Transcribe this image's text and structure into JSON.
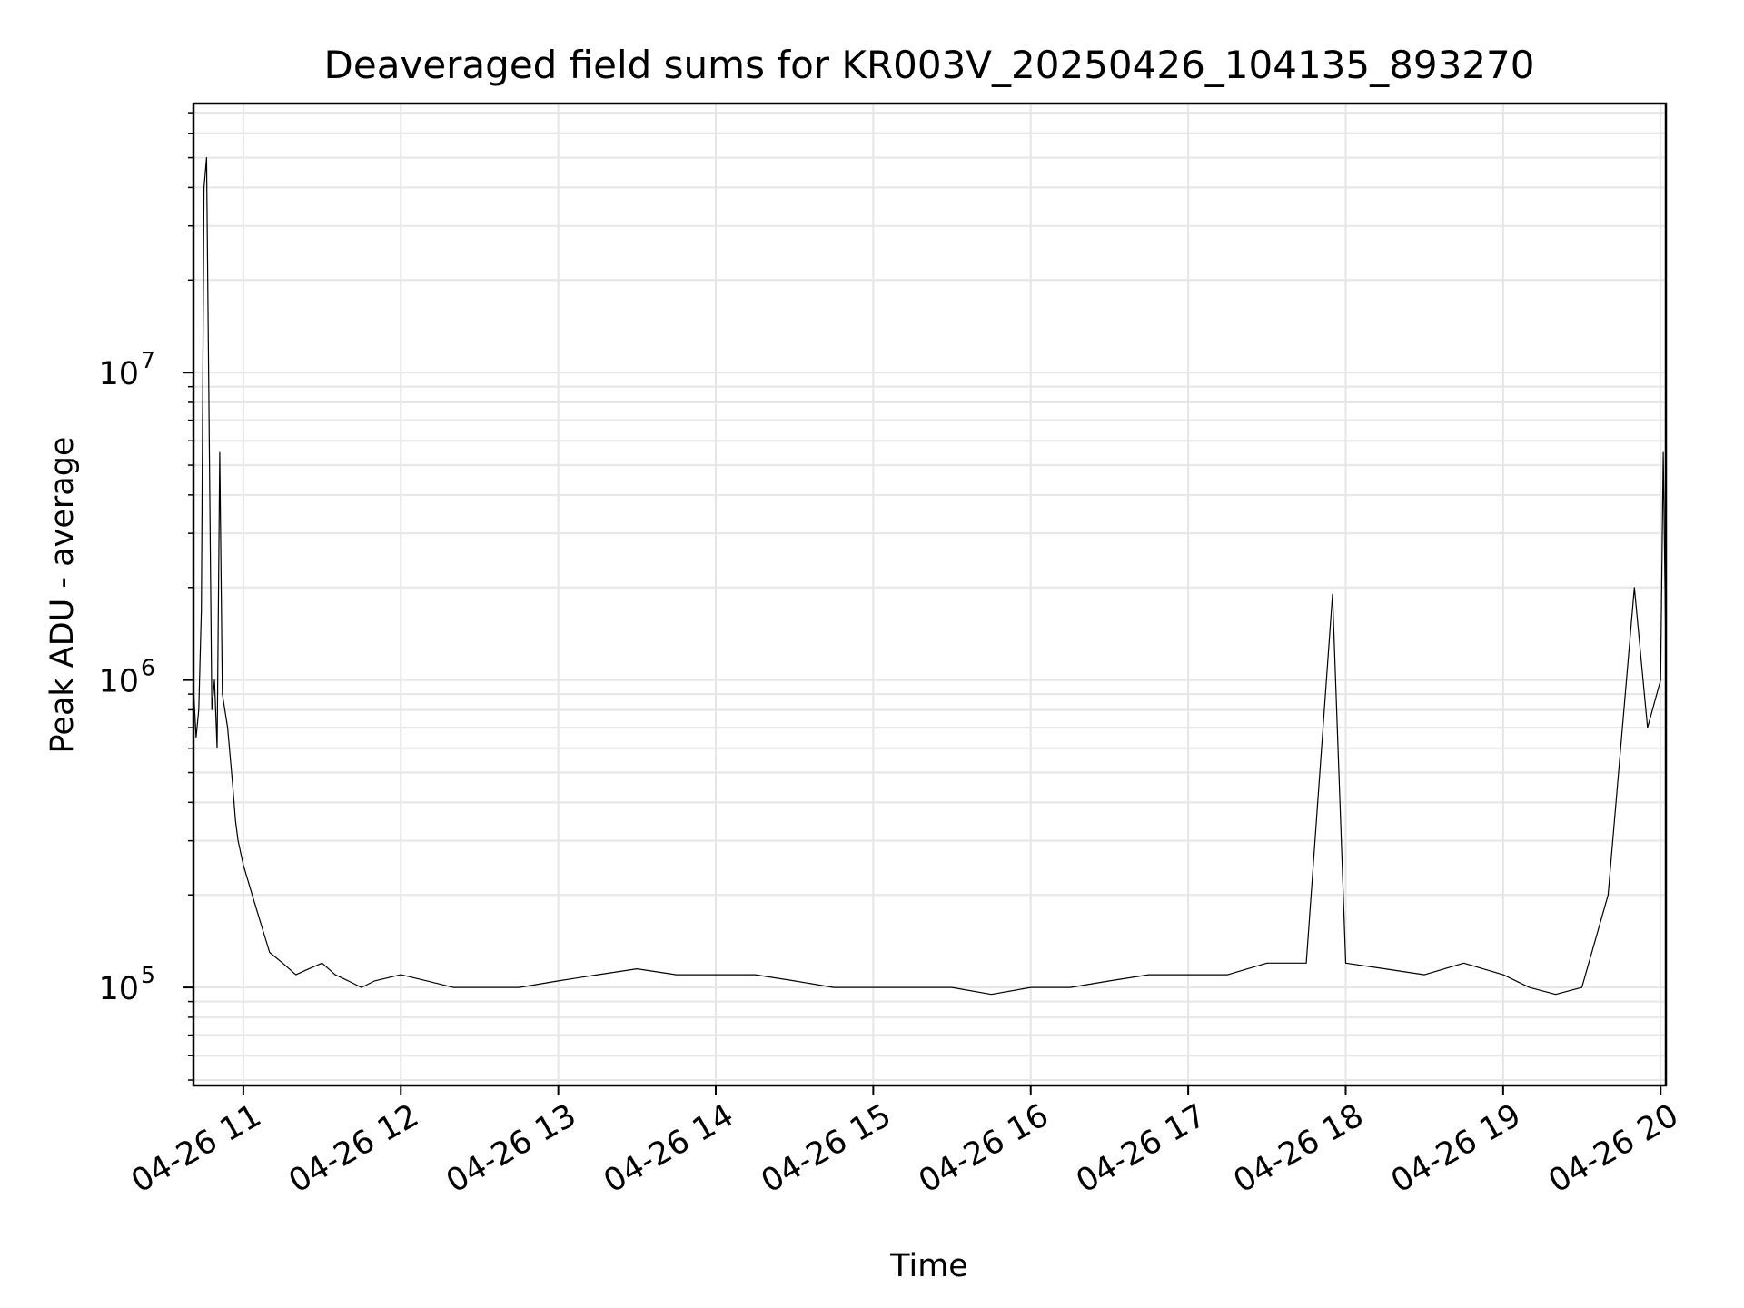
{
  "chart_data": {
    "type": "line",
    "title": "Deaveraged field sums for KR003V_20250426_104135_893270",
    "xlabel": "Time",
    "ylabel": "Peak ADU - average",
    "yscale": "log",
    "ylim": [
      48000,
      75000000
    ],
    "xlim": [
      "04-26 10:41",
      "04-26 20:02"
    ],
    "grid": true,
    "grid_color": "#e6e6e6",
    "line_color": "#000000",
    "x_ticks": [
      {
        "value": "04-26 11:00",
        "label": "04-26 11"
      },
      {
        "value": "04-26 12:00",
        "label": "04-26 12"
      },
      {
        "value": "04-26 13:00",
        "label": "04-26 13"
      },
      {
        "value": "04-26 14:00",
        "label": "04-26 14"
      },
      {
        "value": "04-26 15:00",
        "label": "04-26 15"
      },
      {
        "value": "04-26 16:00",
        "label": "04-26 16"
      },
      {
        "value": "04-26 17:00",
        "label": "04-26 17"
      },
      {
        "value": "04-26 18:00",
        "label": "04-26 18"
      },
      {
        "value": "04-26 19:00",
        "label": "04-26 19"
      },
      {
        "value": "04-26 20:00",
        "label": "04-26 20"
      }
    ],
    "y_ticks": [
      {
        "value": 100000,
        "base": "10",
        "exp": "5"
      },
      {
        "value": 1000000,
        "base": "10",
        "exp": "6"
      },
      {
        "value": 10000000,
        "base": "10",
        "exp": "7"
      }
    ],
    "series": [
      {
        "x": [
          "04-26 10:41",
          "04-26 10:42",
          "04-26 10:43",
          "04-26 10:44",
          "04-26 10:45",
          "04-26 10:46",
          "04-26 10:48",
          "04-26 10:49",
          "04-26 10:50",
          "04-26 10:51",
          "04-26 10:52",
          "04-26 10:54",
          "04-26 10:56",
          "04-26 10:57",
          "04-26 10:58",
          "04-26 11:00",
          "04-26 11:05",
          "04-26 11:10",
          "04-26 11:15",
          "04-26 11:20",
          "04-26 11:25",
          "04-26 11:30",
          "04-26 11:35",
          "04-26 11:40",
          "04-26 11:45",
          "04-26 11:50",
          "04-26 12:00",
          "04-26 12:10",
          "04-26 12:20",
          "04-26 12:30",
          "04-26 12:45",
          "04-26 13:00",
          "04-26 13:15",
          "04-26 13:30",
          "04-26 13:45",
          "04-26 14:00",
          "04-26 14:15",
          "04-26 14:30",
          "04-26 14:45",
          "04-26 15:00",
          "04-26 15:15",
          "04-26 15:30",
          "04-26 15:45",
          "04-26 16:00",
          "04-26 16:15",
          "04-26 16:30",
          "04-26 16:45",
          "04-26 17:00",
          "04-26 17:15",
          "04-26 17:30",
          "04-26 17:45",
          "04-26 17:55",
          "04-26 18:00",
          "04-26 18:15",
          "04-26 18:30",
          "04-26 18:45",
          "04-26 19:00",
          "04-26 19:10",
          "04-26 19:20",
          "04-26 19:30",
          "04-26 19:40",
          "04-26 19:50",
          "04-26 19:55",
          "04-26 20:00",
          "04-26 20:01",
          "04-26 20:02"
        ],
        "y": [
          950000,
          650000,
          800000,
          1700000,
          40000000,
          50000000,
          800000,
          1000000,
          600000,
          5500000,
          900000,
          700000,
          450000,
          350000,
          300000,
          250000,
          180000,
          130000,
          120000,
          110000,
          115000,
          120000,
          110000,
          105000,
          100000,
          105000,
          110000,
          105000,
          100000,
          100000,
          100000,
          105000,
          110000,
          115000,
          110000,
          110000,
          110000,
          105000,
          100000,
          100000,
          100000,
          100000,
          95000,
          100000,
          100000,
          105000,
          110000,
          110000,
          110000,
          120000,
          120000,
          1900000,
          120000,
          115000,
          110000,
          120000,
          110000,
          100000,
          95000,
          100000,
          200000,
          2000000,
          700000,
          1000000,
          5500000,
          1200000
        ]
      }
    ]
  }
}
